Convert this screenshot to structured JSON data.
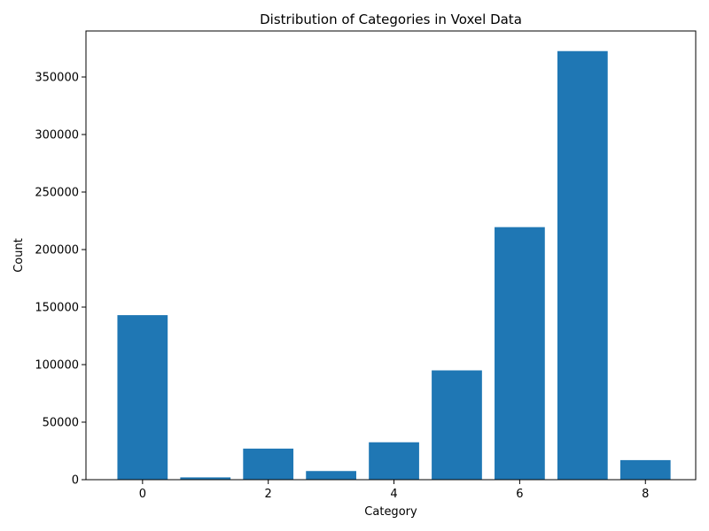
{
  "chart_data": {
    "type": "bar",
    "title": "Distribution of Categories in Voxel Data",
    "xlabel": "Category",
    "ylabel": "Count",
    "x": [
      0,
      1,
      2,
      3,
      4,
      5,
      6,
      7,
      8
    ],
    "values": [
      143000,
      2000,
      27000,
      7500,
      32500,
      95000,
      219500,
      372500,
      17000
    ],
    "xlim": [
      -0.9,
      8.8
    ],
    "ylim": [
      0,
      390000
    ],
    "xticks": [
      0,
      2,
      4,
      6,
      8
    ],
    "xtick_labels": [
      "0",
      "2",
      "4",
      "6",
      "8"
    ],
    "yticks": [
      0,
      50000,
      100000,
      150000,
      200000,
      250000,
      300000,
      350000
    ],
    "ytick_labels": [
      "0",
      "50000",
      "100000",
      "150000",
      "200000",
      "250000",
      "300000",
      "350000"
    ],
    "bar_color": "#1f77b4",
    "grid": false,
    "legend": "none"
  }
}
